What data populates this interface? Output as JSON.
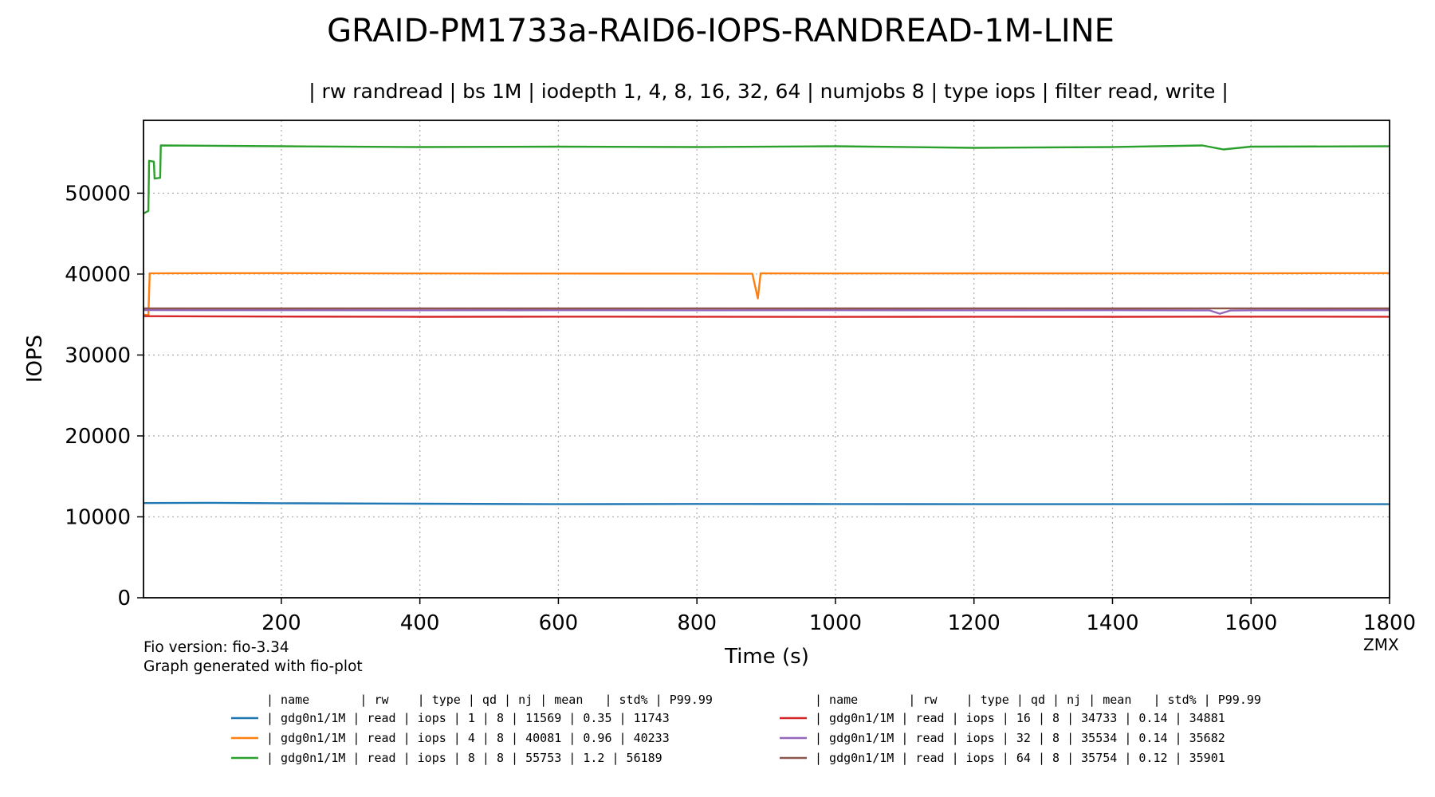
{
  "chart_data": {
    "type": "line",
    "title": "GRAID-PM1733a-RAID6-IOPS-RANDREAD-1M-LINE",
    "subtitle": "| rw randread | bs 1M | iodepth 1, 4, 8, 16, 32, 64 | numjobs 8 | type iops | filter read, write |",
    "xlabel": "Time (s)",
    "ylabel": "IOPS",
    "xlim": [
      1,
      1800
    ],
    "ylim": [
      0,
      59000
    ],
    "xticks": [
      200,
      400,
      600,
      800,
      1000,
      1200,
      1400,
      1600,
      1800
    ],
    "yticks": [
      0,
      10000,
      20000,
      30000,
      40000,
      50000
    ],
    "xtick_labels": [
      "200",
      "400",
      "600",
      "800",
      "1000",
      "1200",
      "1400",
      "1600",
      "1800"
    ],
    "ytick_labels": [
      "0",
      "10000",
      "20000",
      "30000",
      "40000",
      "50000"
    ],
    "grid": true,
    "footnote_lines": [
      "Fio version: fio-3.34",
      "Graph generated with fio-plot"
    ],
    "corner_label": "ZMX",
    "legend_header": "| name       | rw    | type | qd | nj | mean   | std% | P99.99",
    "series": [
      {
        "color": "#1f77b4",
        "legend_text": "|  gdg0n1/1M |  read | iops |  1 |  8 |  11569 | 0.35 |  11743",
        "points": [
          [
            1,
            11700
          ],
          [
            100,
            11730
          ],
          [
            200,
            11680
          ],
          [
            400,
            11620
          ],
          [
            600,
            11560
          ],
          [
            800,
            11590
          ],
          [
            1000,
            11580
          ],
          [
            1200,
            11560
          ],
          [
            1400,
            11560
          ],
          [
            1600,
            11570
          ],
          [
            1800,
            11560
          ]
        ]
      },
      {
        "color": "#ff7f0e",
        "legend_text": "|  gdg0n1/1M |  read | iops |  4 |  8 |  40081 | 0.96 |  40233",
        "points": [
          [
            1,
            35000
          ],
          [
            8,
            34900
          ],
          [
            10,
            40100
          ],
          [
            200,
            40120
          ],
          [
            400,
            40080
          ],
          [
            600,
            40070
          ],
          [
            880,
            40050
          ],
          [
            888,
            37000
          ],
          [
            892,
            40100
          ],
          [
            1000,
            40080
          ],
          [
            1200,
            40090
          ],
          [
            1400,
            40090
          ],
          [
            1600,
            40100
          ],
          [
            1800,
            40120
          ]
        ]
      },
      {
        "color": "#2ca02c",
        "legend_text": "|  gdg0n1/1M |  read | iops |  8 |  8 |  55753 | 1.2 |  56189",
        "points": [
          [
            1,
            47500
          ],
          [
            8,
            47800
          ],
          [
            9,
            54000
          ],
          [
            16,
            53900
          ],
          [
            17,
            51800
          ],
          [
            25,
            51900
          ],
          [
            26,
            55900
          ],
          [
            200,
            55800
          ],
          [
            400,
            55700
          ],
          [
            600,
            55750
          ],
          [
            800,
            55700
          ],
          [
            1000,
            55800
          ],
          [
            1200,
            55600
          ],
          [
            1400,
            55700
          ],
          [
            1530,
            55900
          ],
          [
            1560,
            55400
          ],
          [
            1600,
            55750
          ],
          [
            1800,
            55800
          ]
        ]
      },
      {
        "color": "#d62728",
        "legend_text": "|  gdg0n1/1M |  read | iops | 16 |  8 |  34733 | 0.14 |  34881",
        "points": [
          [
            1,
            34800
          ],
          [
            200,
            34750
          ],
          [
            400,
            34720
          ],
          [
            600,
            34740
          ],
          [
            800,
            34730
          ],
          [
            1000,
            34710
          ],
          [
            1200,
            34730
          ],
          [
            1400,
            34720
          ],
          [
            1600,
            34740
          ],
          [
            1800,
            34730
          ]
        ]
      },
      {
        "color": "#9467bd",
        "legend_text": "|  gdg0n1/1M |  read | iops | 32 |  8 |  35534 | 0.14 |  35682",
        "points": [
          [
            1,
            35550
          ],
          [
            200,
            35540
          ],
          [
            400,
            35530
          ],
          [
            600,
            35540
          ],
          [
            800,
            35530
          ],
          [
            1000,
            35540
          ],
          [
            1200,
            35530
          ],
          [
            1400,
            35540
          ],
          [
            1540,
            35520
          ],
          [
            1555,
            35100
          ],
          [
            1570,
            35500
          ],
          [
            1600,
            35530
          ],
          [
            1800,
            35540
          ]
        ]
      },
      {
        "color": "#8c564b",
        "legend_text": "|  gdg0n1/1M |  read | iops | 64 |  8 |  35754 | 0.12 |  35901",
        "points": [
          [
            1,
            35760
          ],
          [
            200,
            35750
          ],
          [
            400,
            35760
          ],
          [
            600,
            35750
          ],
          [
            800,
            35760
          ],
          [
            1000,
            35750
          ],
          [
            1200,
            35760
          ],
          [
            1400,
            35750
          ],
          [
            1600,
            35760
          ],
          [
            1800,
            35750
          ]
        ]
      }
    ]
  }
}
